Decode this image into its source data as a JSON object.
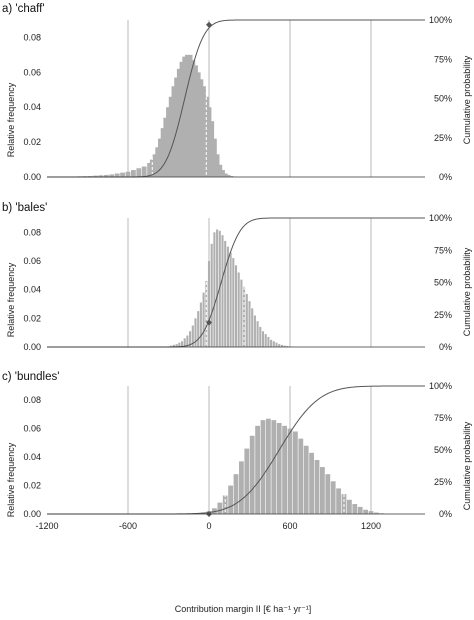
{
  "chart_data": [
    {
      "type": "bar",
      "title": "a) 'chaff'",
      "ylabel": "Relative frequency",
      "y2label": "Cumulative probability",
      "xlim": [
        -1200,
        1600
      ],
      "ylim": [
        0,
        0.09
      ],
      "y2lim": [
        0,
        1
      ],
      "yticks": [
        "0.00",
        "0.02",
        "0.04",
        "0.06",
        "0.08"
      ],
      "y2ticks": [
        "0%",
        "25%",
        "50%",
        "75%",
        "100%"
      ],
      "grid_x": [
        -600,
        0,
        600,
        1200
      ],
      "marker": {
        "x": 0,
        "y": 0.97
      },
      "x": [
        -1000,
        -960,
        -920,
        -880,
        -840,
        -800,
        -760,
        -720,
        -680,
        -640,
        -600,
        -560,
        -520,
        -480,
        -440,
        -420,
        -400,
        -380,
        -360,
        -340,
        -320,
        -300,
        -280,
        -260,
        -240,
        -220,
        -200,
        -180,
        -160,
        -140,
        -120,
        -100,
        -80,
        -60,
        -40,
        -20,
        0,
        20,
        40,
        60,
        80,
        100,
        120,
        140,
        160,
        180,
        200
      ],
      "values": [
        0.0003,
        0.0004,
        0.0005,
        0.0006,
        0.0008,
        0.001,
        0.0012,
        0.0015,
        0.002,
        0.0025,
        0.003,
        0.004,
        0.005,
        0.006,
        0.008,
        0.01,
        0.013,
        0.017,
        0.022,
        0.028,
        0.034,
        0.04,
        0.046,
        0.052,
        0.057,
        0.062,
        0.066,
        0.069,
        0.07,
        0.07,
        0.067,
        0.064,
        0.06,
        0.056,
        0.052,
        0.046,
        0.04,
        0.032,
        0.022,
        0.013,
        0.007,
        0.004,
        0.002,
        0.0012,
        0.0006,
        0.0003,
        0.0001
      ],
      "cdf": {
        "mu": -180,
        "sigma": 110
      }
    },
    {
      "type": "bar",
      "title": "b) 'bales'",
      "ylabel": "Relative frequency",
      "y2label": "Cumulative probability",
      "xlim": [
        -1200,
        1600
      ],
      "ylim": [
        0,
        0.09
      ],
      "y2lim": [
        0,
        1
      ],
      "yticks": [
        "0.00",
        "0.02",
        "0.04",
        "0.06",
        "0.08"
      ],
      "y2ticks": [
        "0%",
        "25%",
        "50%",
        "75%",
        "100%"
      ],
      "grid_x": [
        -600,
        0,
        600,
        1200
      ],
      "marker": {
        "x": 0,
        "y": 0.19
      },
      "x": [
        -320,
        -300,
        -280,
        -260,
        -240,
        -220,
        -200,
        -180,
        -160,
        -140,
        -120,
        -100,
        -80,
        -60,
        -40,
        -20,
        0,
        20,
        40,
        60,
        80,
        100,
        120,
        140,
        160,
        180,
        200,
        220,
        240,
        260,
        280,
        300,
        320,
        340,
        360,
        380,
        400,
        420,
        440,
        460,
        480,
        500,
        520,
        540,
        560,
        580,
        600,
        620
      ],
      "values": [
        0.0003,
        0.0005,
        0.001,
        0.0015,
        0.002,
        0.003,
        0.004,
        0.006,
        0.008,
        0.011,
        0.015,
        0.02,
        0.025,
        0.031,
        0.038,
        0.046,
        0.06,
        0.072,
        0.08,
        0.082,
        0.081,
        0.078,
        0.074,
        0.07,
        0.066,
        0.062,
        0.057,
        0.052,
        0.047,
        0.042,
        0.037,
        0.032,
        0.027,
        0.022,
        0.018,
        0.014,
        0.011,
        0.009,
        0.007,
        0.005,
        0.004,
        0.003,
        0.002,
        0.0015,
        0.001,
        0.0007,
        0.0004,
        0.0002
      ],
      "cdf": {
        "mu": 90,
        "sigma": 110
      }
    },
    {
      "type": "bar",
      "title": "c) 'bundles'",
      "ylabel": "Relative frequency",
      "y2label": "Cumulative probability",
      "xlabel": "Contribution margin II [€ ha⁻¹ yr⁻¹]",
      "xlim": [
        -1200,
        1600
      ],
      "ylim": [
        0,
        0.09
      ],
      "y2lim": [
        0,
        1
      ],
      "yticks": [
        "0.00",
        "0.02",
        "0.04",
        "0.06",
        "0.08"
      ],
      "y2ticks": [
        "0%",
        "25%",
        "50%",
        "75%",
        "100%"
      ],
      "xticks": [
        "-1200",
        "-600",
        "0",
        "600",
        "1200"
      ],
      "xtick_values": [
        -1200,
        -600,
        0,
        600,
        1200
      ],
      "grid_x": [
        -600,
        0,
        600,
        1200
      ],
      "marker": {
        "x": 0,
        "y": 0.0
      },
      "x": [
        -40,
        0,
        40,
        80,
        120,
        160,
        200,
        240,
        280,
        320,
        360,
        400,
        440,
        480,
        520,
        560,
        600,
        640,
        680,
        720,
        760,
        800,
        840,
        880,
        920,
        960,
        1000,
        1040,
        1080,
        1120,
        1160,
        1200,
        1240,
        1280
      ],
      "values": [
        0.001,
        0.002,
        0.004,
        0.008,
        0.013,
        0.02,
        0.028,
        0.037,
        0.046,
        0.055,
        0.062,
        0.066,
        0.067,
        0.066,
        0.064,
        0.062,
        0.06,
        0.058,
        0.053,
        0.048,
        0.043,
        0.038,
        0.033,
        0.028,
        0.023,
        0.018,
        0.014,
        0.01,
        0.007,
        0.005,
        0.003,
        0.002,
        0.001,
        0.0005
      ],
      "cdf": {
        "mu": 520,
        "sigma": 230
      }
    }
  ]
}
